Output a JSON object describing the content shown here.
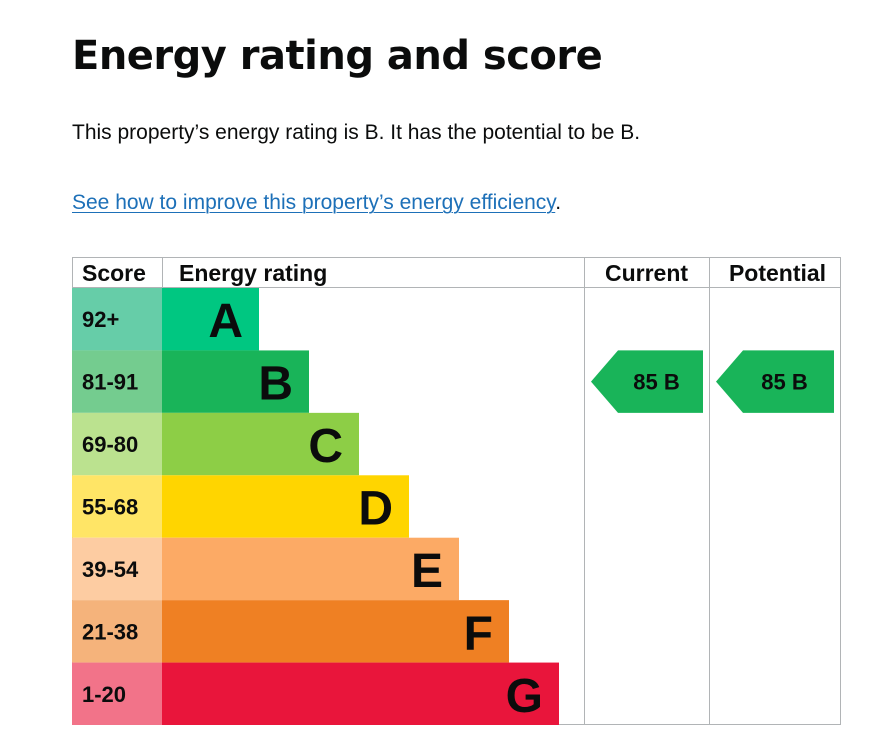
{
  "page": {
    "title": "Energy rating and score",
    "summary": "This property’s energy rating is B. It has the potential to be B.",
    "improve_link": "See how to improve this property’s energy efficiency",
    "improve_suffix": "."
  },
  "chart_data": {
    "type": "table",
    "headers": {
      "score": "Score",
      "rating": "Energy rating",
      "current": "Current",
      "potential": "Potential"
    },
    "bands": [
      {
        "letter": "A",
        "score_range": "92+",
        "band_color": "#00c781",
        "score_color": "#66cda8"
      },
      {
        "letter": "B",
        "score_range": "81-91",
        "band_color": "#19b459",
        "score_color": "#74cc8f"
      },
      {
        "letter": "C",
        "score_range": "69-80",
        "band_color": "#8dce46",
        "score_color": "#bbe28f"
      },
      {
        "letter": "D",
        "score_range": "55-68",
        "band_color": "#ffd500",
        "score_color": "#ffe566"
      },
      {
        "letter": "E",
        "score_range": "39-54",
        "band_color": "#fcaa65",
        "score_color": "#fdcca2"
      },
      {
        "letter": "F",
        "score_range": "21-38",
        "band_color": "#ef8023",
        "score_color": "#f5b37b"
      },
      {
        "letter": "G",
        "score_range": "1-20",
        "band_color": "#e9153b",
        "score_color": "#f27389"
      }
    ],
    "current": {
      "score": 85,
      "band": "B",
      "color": "#19b459"
    },
    "potential": {
      "score": 85,
      "band": "B",
      "color": "#19b459"
    }
  }
}
